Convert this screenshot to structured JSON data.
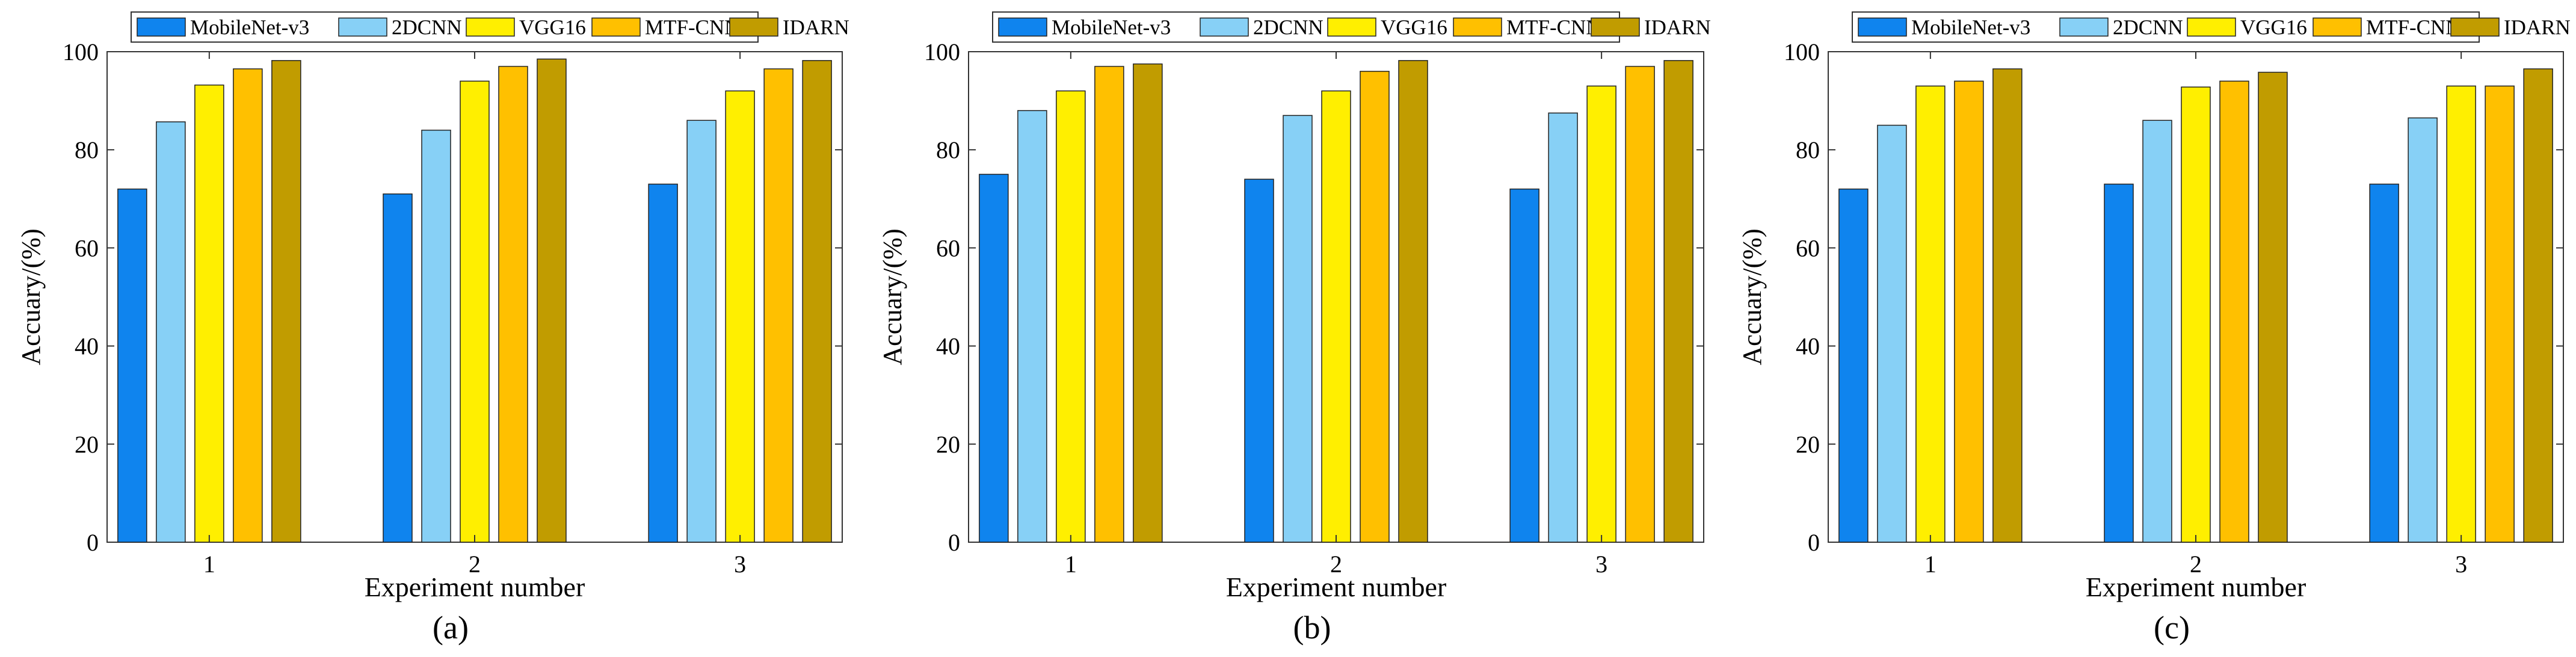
{
  "chart_data": [
    {
      "type": "bar",
      "panel_label": "(a)",
      "categories": [
        "1",
        "2",
        "3"
      ],
      "series": [
        {
          "name": "MobileNet-v3",
          "values": [
            72,
            71,
            73
          ]
        },
        {
          "name": "2DCNN",
          "values": [
            85.7,
            84,
            86
          ]
        },
        {
          "name": "VGG16",
          "values": [
            93.2,
            94,
            92
          ]
        },
        {
          "name": "MTF-CNN",
          "values": [
            96.5,
            97,
            96.5
          ]
        },
        {
          "name": "IDARN",
          "values": [
            98.2,
            98.5,
            98.2
          ]
        }
      ],
      "xlabel": "Experiment number",
      "ylabel": "Accuary/(%)",
      "ylim": [
        0,
        100
      ],
      "yticks": [
        0,
        20,
        40,
        60,
        80,
        100
      ],
      "legend_position": "top",
      "grid": false
    },
    {
      "type": "bar",
      "panel_label": "(b)",
      "categories": [
        "1",
        "2",
        "3"
      ],
      "series": [
        {
          "name": "MobileNet-v3",
          "values": [
            75,
            74,
            72
          ]
        },
        {
          "name": "2DCNN",
          "values": [
            88,
            87,
            87.5
          ]
        },
        {
          "name": "VGG16",
          "values": [
            92,
            92,
            93
          ]
        },
        {
          "name": "MTF-CNN",
          "values": [
            97,
            96,
            97
          ]
        },
        {
          "name": "IDARN",
          "values": [
            97.5,
            98.2,
            98.2
          ]
        }
      ],
      "xlabel": "Experiment number",
      "ylabel": "Accuary/(%)",
      "ylim": [
        0,
        100
      ],
      "yticks": [
        0,
        20,
        40,
        60,
        80,
        100
      ],
      "legend_position": "top",
      "grid": false
    },
    {
      "type": "bar",
      "panel_label": "(c)",
      "categories": [
        "1",
        "2",
        "3"
      ],
      "series": [
        {
          "name": "MobileNet-v3",
          "values": [
            72,
            73,
            73
          ]
        },
        {
          "name": "2DCNN",
          "values": [
            85,
            86,
            86.5
          ]
        },
        {
          "name": "VGG16",
          "values": [
            93,
            92.8,
            93
          ]
        },
        {
          "name": "MTF-CNN",
          "values": [
            94,
            94,
            93
          ]
        },
        {
          "name": "IDARN",
          "values": [
            96.5,
            95.8,
            96.5
          ]
        }
      ],
      "xlabel": "Experiment number",
      "ylabel": "Accuary/(%)",
      "ylim": [
        0,
        100
      ],
      "yticks": [
        0,
        20,
        40,
        60,
        80,
        100
      ],
      "legend_position": "top",
      "grid": false
    }
  ],
  "series_colors": [
    "#0f84ee",
    "#87d0f6",
    "#ffef00",
    "#ffc000",
    "#c19c00"
  ]
}
